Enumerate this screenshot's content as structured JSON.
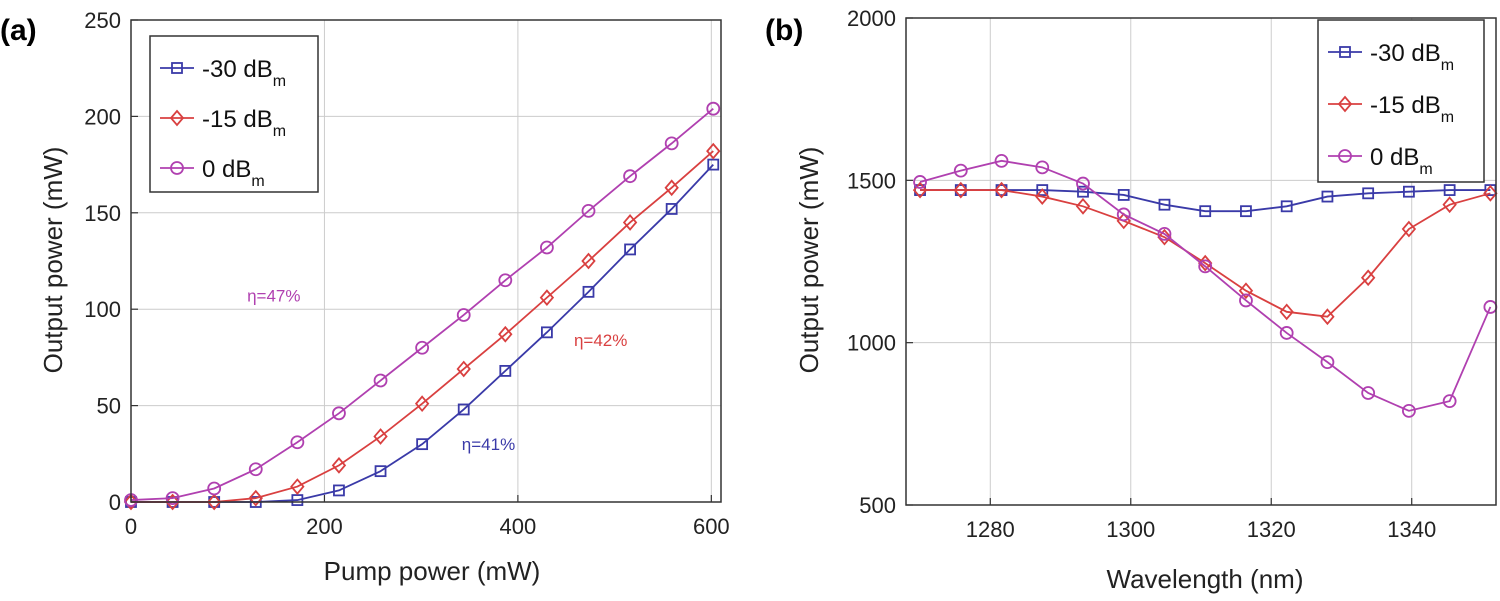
{
  "chart_data": [
    {
      "panel": "(a)",
      "type": "line",
      "xlabel": "Pump power (mW)",
      "ylabel": "Output power (mW)",
      "xlim": [
        0,
        610
      ],
      "ylim": [
        0,
        250
      ],
      "xticks": [
        "0",
        "200",
        "400",
        "600"
      ],
      "yticks": [
        "0",
        "50",
        "100",
        "150",
        "200",
        "250"
      ],
      "grid": true,
      "legend_position": "top-left",
      "x": [
        0,
        43,
        86,
        129,
        172,
        215,
        258,
        301,
        344,
        387,
        430,
        473,
        516,
        559,
        602
      ],
      "series": [
        {
          "name": "-30 dB",
          "sub": "m",
          "color": "#3a3aa8",
          "marker": "square",
          "values": [
            0,
            0,
            0,
            0,
            1,
            6,
            16,
            30,
            48,
            68,
            88,
            109,
            131,
            152,
            175
          ]
        },
        {
          "name": "-15 dB",
          "sub": "m",
          "color": "#d94040",
          "marker": "diamond",
          "values": [
            0,
            0,
            0,
            2,
            8,
            19,
            34,
            51,
            69,
            87,
            106,
            125,
            145,
            163,
            182
          ]
        },
        {
          "name": "0 dB",
          "sub": "m",
          "color": "#b040b0",
          "marker": "circle",
          "values": [
            1,
            2,
            7,
            17,
            31,
            46,
            63,
            80,
            97,
            115,
            132,
            151,
            169,
            186,
            204
          ]
        }
      ],
      "annotations": [
        {
          "text": "η=47%",
          "x": 120,
          "y": 104,
          "color": "#b040b0"
        },
        {
          "text": "η=42%",
          "x": 458,
          "y": 81,
          "color": "#d94040"
        },
        {
          "text": "η=41%",
          "x": 342,
          "y": 27,
          "color": "#3a3aa8"
        }
      ]
    },
    {
      "panel": "(b)",
      "type": "line",
      "xlabel": "Wavelength (nm)",
      "ylabel": "Output power (mW)",
      "xlim": [
        1268,
        1352
      ],
      "ylim": [
        500,
        2000
      ],
      "xticks": [
        "1280",
        "1300",
        "1320",
        "1340"
      ],
      "yticks": [
        "500",
        "1000",
        "1500",
        "2000"
      ],
      "grid": true,
      "legend_position": "top-right",
      "x": [
        1270,
        1275.8,
        1281.6,
        1287.4,
        1293.2,
        1299,
        1304.8,
        1310.6,
        1316.4,
        1322.2,
        1328,
        1333.8,
        1339.6,
        1345.4,
        1351.2
      ],
      "series": [
        {
          "name": "-30 dB",
          "sub": "m",
          "color": "#3a3aa8",
          "marker": "square",
          "values": [
            1470,
            1470,
            1470,
            1470,
            1465,
            1455,
            1425,
            1405,
            1405,
            1420,
            1450,
            1460,
            1465,
            1470,
            1470
          ]
        },
        {
          "name": "-15 dB",
          "sub": "m",
          "color": "#d94040",
          "marker": "diamond",
          "values": [
            1470,
            1470,
            1470,
            1450,
            1420,
            1375,
            1325,
            1245,
            1160,
            1095,
            1080,
            1200,
            1350,
            1425,
            1460
          ]
        },
        {
          "name": "0 dB",
          "sub": "m",
          "color": "#b040b0",
          "marker": "circle",
          "values": [
            1495,
            1530,
            1560,
            1540,
            1490,
            1395,
            1335,
            1235,
            1130,
            1030,
            940,
            845,
            790,
            820,
            1110
          ]
        }
      ]
    }
  ]
}
